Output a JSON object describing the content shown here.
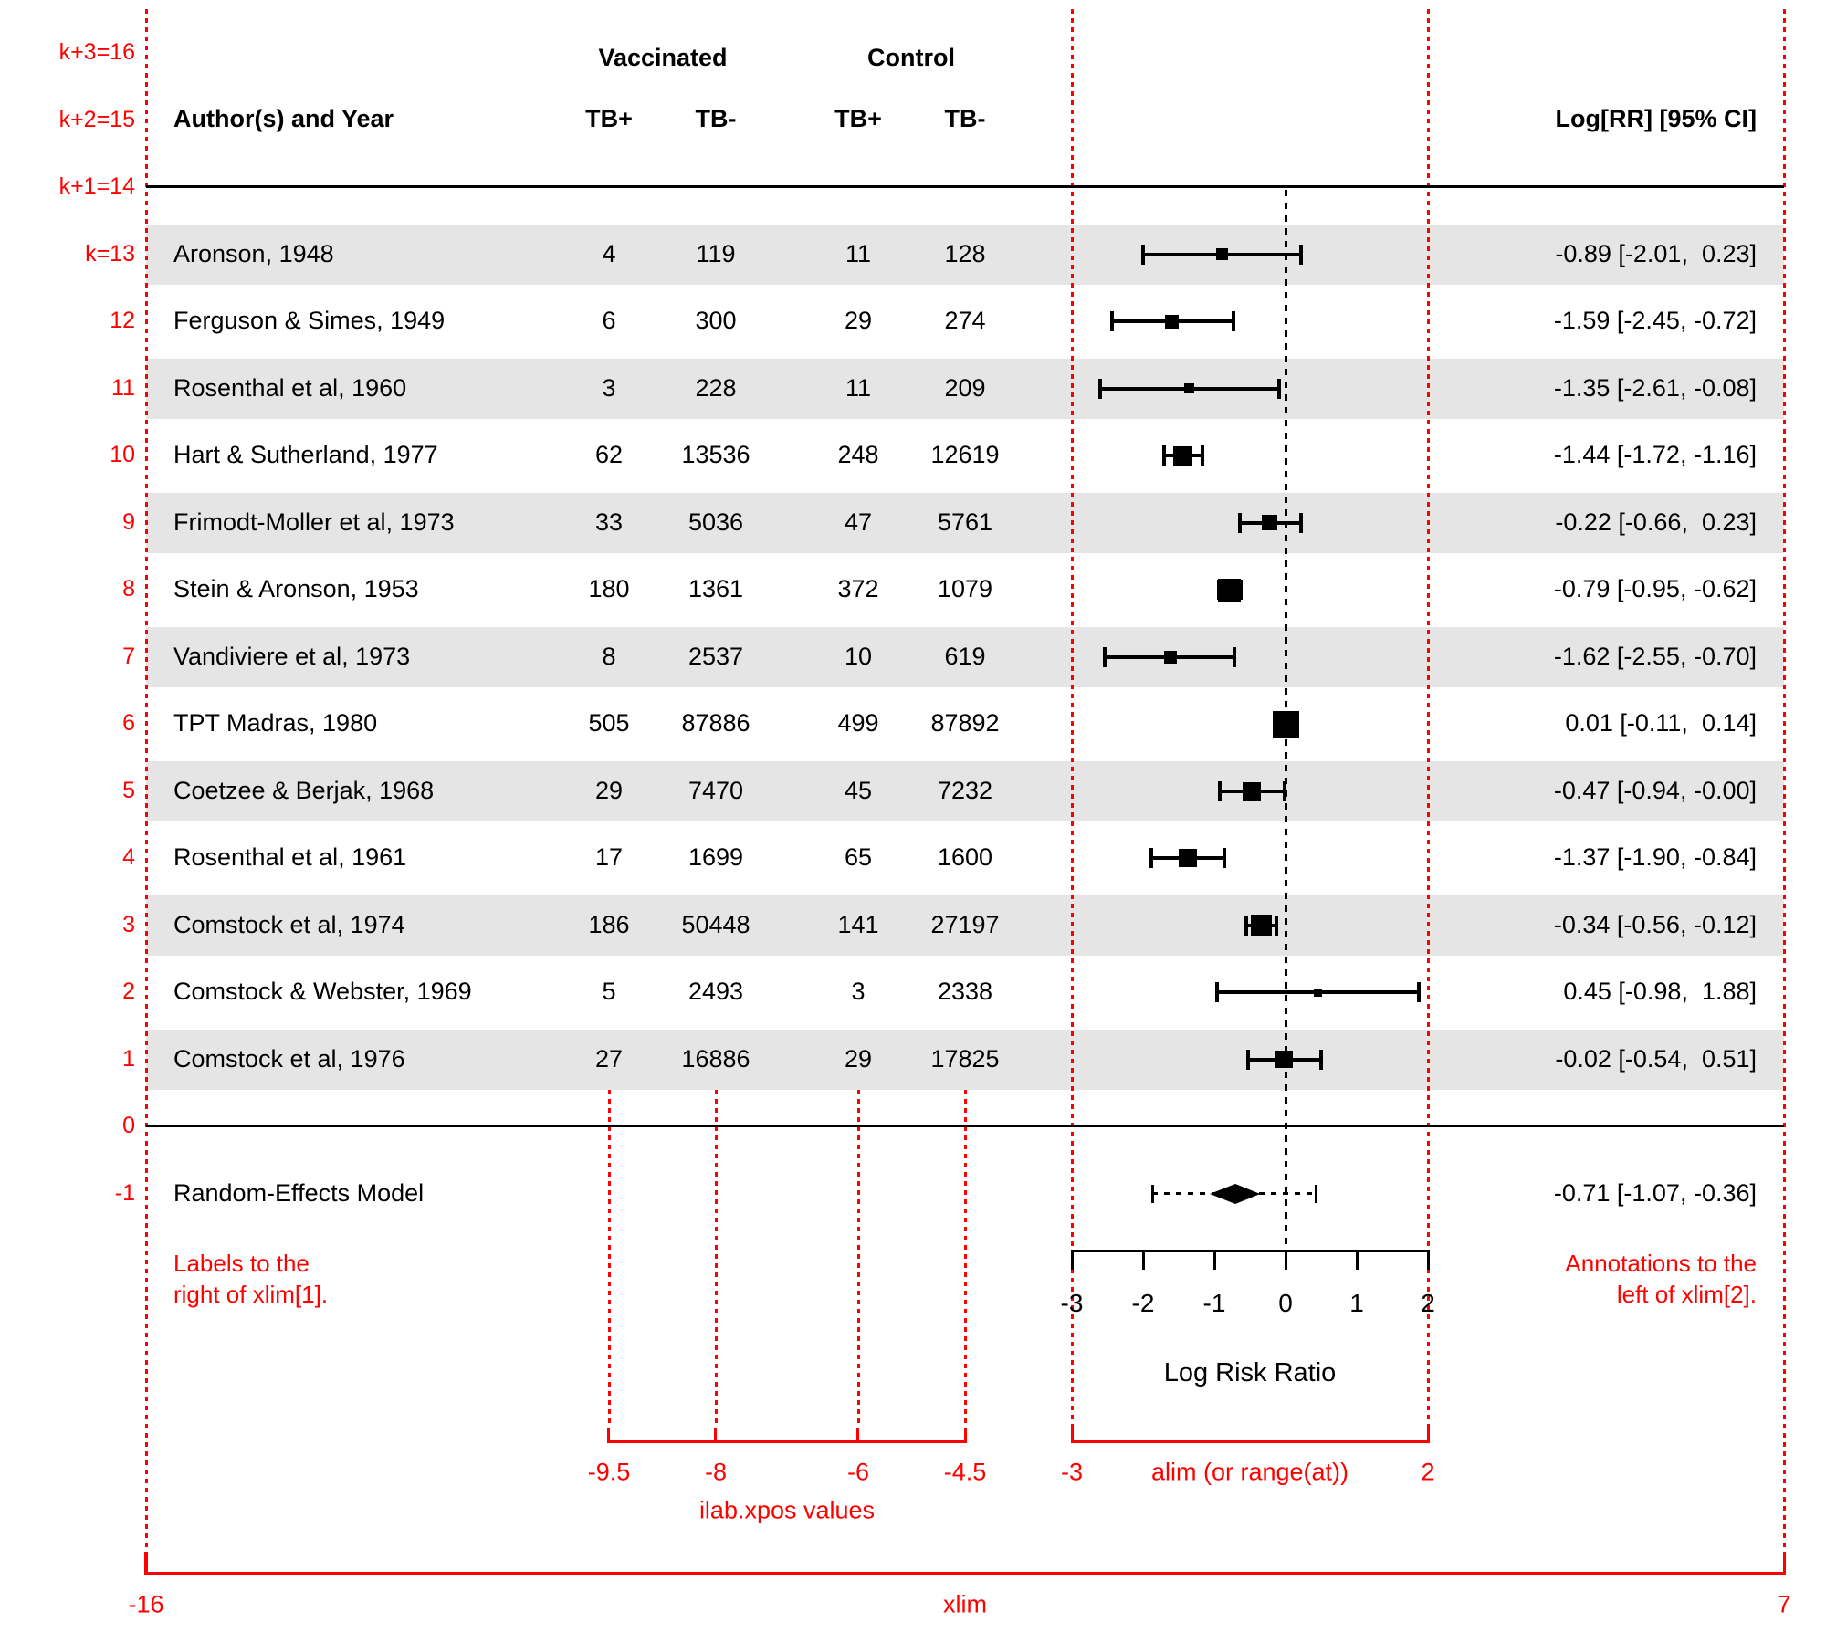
{
  "chart_data": {
    "type": "scatter",
    "subtype": "forest-plot-meta-analysis",
    "xlabel": "Log Risk Ratio",
    "axis_ticks": [
      -3,
      -2,
      -1,
      0,
      1,
      2
    ],
    "alim": [
      -3,
      2
    ],
    "xlim": [
      -16,
      7
    ],
    "ilab_xpos": [
      -9.5,
      -8,
      -6,
      -4.5
    ],
    "columns": {
      "author": "Author(s) and Year",
      "group1": "Vaccinated",
      "group2": "Control",
      "sub": [
        "TB+",
        "TB-",
        "TB+",
        "TB-"
      ],
      "annotation": "Log[RR] [95% CI]"
    },
    "row_labels": [
      {
        "row": 16,
        "label": "k+3=16"
      },
      {
        "row": 15,
        "label": "k+2=15"
      },
      {
        "row": 14,
        "label": "k+1=14"
      },
      {
        "row": 13,
        "label": "k=13"
      },
      {
        "row": 12,
        "label": "12"
      },
      {
        "row": 11,
        "label": "11"
      },
      {
        "row": 10,
        "label": "10"
      },
      {
        "row": 9,
        "label": "9"
      },
      {
        "row": 8,
        "label": "8"
      },
      {
        "row": 7,
        "label": "7"
      },
      {
        "row": 6,
        "label": "6"
      },
      {
        "row": 5,
        "label": "5"
      },
      {
        "row": 4,
        "label": "4"
      },
      {
        "row": 3,
        "label": "3"
      },
      {
        "row": 2,
        "label": "2"
      },
      {
        "row": 1,
        "label": "1"
      },
      {
        "row": 0,
        "label": "0"
      },
      {
        "row": -1,
        "label": "-1"
      }
    ],
    "studies": [
      {
        "row": 13,
        "author": "Aronson, 1948",
        "tb_pos_v": 4,
        "tb_neg_v": 119,
        "tb_pos_c": 11,
        "tb_neg_c": 128,
        "yi": -0.89,
        "ci_lb": -2.01,
        "ci_ub": 0.23,
        "annotation": "-0.89 [-2.01,  0.23]",
        "psize": 13,
        "shaded": true
      },
      {
        "row": 12,
        "author": "Ferguson & Simes, 1949",
        "tb_pos_v": 6,
        "tb_neg_v": 300,
        "tb_pos_c": 29,
        "tb_neg_c": 274,
        "yi": -1.59,
        "ci_lb": -2.45,
        "ci_ub": -0.72,
        "annotation": "-1.59 [-2.45, -0.72]",
        "psize": 15,
        "shaded": false
      },
      {
        "row": 11,
        "author": "Rosenthal et al, 1960",
        "tb_pos_v": 3,
        "tb_neg_v": 228,
        "tb_pos_c": 11,
        "tb_neg_c": 209,
        "yi": -1.35,
        "ci_lb": -2.61,
        "ci_ub": -0.08,
        "annotation": "-1.35 [-2.61, -0.08]",
        "psize": 11,
        "shaded": true
      },
      {
        "row": 10,
        "author": "Hart & Sutherland, 1977",
        "tb_pos_v": 62,
        "tb_neg_v": 13536,
        "tb_pos_c": 248,
        "tb_neg_c": 12619,
        "yi": -1.44,
        "ci_lb": -1.72,
        "ci_ub": -1.16,
        "annotation": "-1.44 [-1.72, -1.16]",
        "psize": 21,
        "shaded": false
      },
      {
        "row": 9,
        "author": "Frimodt-Moller et al, 1973",
        "tb_pos_v": 33,
        "tb_neg_v": 5036,
        "tb_pos_c": 47,
        "tb_neg_c": 5761,
        "yi": -0.22,
        "ci_lb": -0.66,
        "ci_ub": 0.23,
        "annotation": "-0.22 [-0.66,  0.23]",
        "psize": 17,
        "shaded": true
      },
      {
        "row": 8,
        "author": "Stein & Aronson, 1953",
        "tb_pos_v": 180,
        "tb_neg_v": 1361,
        "tb_pos_c": 372,
        "tb_neg_c": 1079,
        "yi": -0.79,
        "ci_lb": -0.95,
        "ci_ub": -0.62,
        "annotation": "-0.79 [-0.95, -0.62]",
        "psize": 25,
        "shaded": false
      },
      {
        "row": 7,
        "author": "Vandiviere et al, 1973",
        "tb_pos_v": 8,
        "tb_neg_v": 2537,
        "tb_pos_c": 10,
        "tb_neg_c": 619,
        "yi": -1.62,
        "ci_lb": -2.55,
        "ci_ub": -0.7,
        "annotation": "-1.62 [-2.55, -0.70]",
        "psize": 14,
        "shaded": true
      },
      {
        "row": 6,
        "author": "TPT Madras, 1980",
        "tb_pos_v": 505,
        "tb_neg_v": 87886,
        "tb_pos_c": 499,
        "tb_neg_c": 87892,
        "yi": 0.01,
        "ci_lb": -0.11,
        "ci_ub": 0.14,
        "annotation": "0.01 [-0.11,  0.14]",
        "psize": 29,
        "shaded": false
      },
      {
        "row": 5,
        "author": "Coetzee & Berjak, 1968",
        "tb_pos_v": 29,
        "tb_neg_v": 7470,
        "tb_pos_c": 45,
        "tb_neg_c": 7232,
        "yi": -0.47,
        "ci_lb": -0.94,
        "ci_ub": 0.0,
        "annotation": "-0.47 [-0.94, -0.00]",
        "psize": 20,
        "shaded": true
      },
      {
        "row": 4,
        "author": "Rosenthal et al, 1961",
        "tb_pos_v": 17,
        "tb_neg_v": 1699,
        "tb_pos_c": 65,
        "tb_neg_c": 1600,
        "yi": -1.37,
        "ci_lb": -1.9,
        "ci_ub": -0.84,
        "annotation": "-1.37 [-1.90, -0.84]",
        "psize": 20,
        "shaded": false
      },
      {
        "row": 3,
        "author": "Comstock et al, 1974",
        "tb_pos_v": 186,
        "tb_neg_v": 50448,
        "tb_pos_c": 141,
        "tb_neg_c": 27197,
        "yi": -0.34,
        "ci_lb": -0.56,
        "ci_ub": -0.12,
        "annotation": "-0.34 [-0.56, -0.12]",
        "psize": 23,
        "shaded": true
      },
      {
        "row": 2,
        "author": "Comstock & Webster, 1969",
        "tb_pos_v": 5,
        "tb_neg_v": 2493,
        "tb_pos_c": 3,
        "tb_neg_c": 2338,
        "yi": 0.45,
        "ci_lb": -0.98,
        "ci_ub": 1.88,
        "annotation": "0.45 [-0.98,  1.88]",
        "psize": 9,
        "shaded": false
      },
      {
        "row": 1,
        "author": "Comstock et al, 1976",
        "tb_pos_v": 27,
        "tb_neg_v": 16886,
        "tb_pos_c": 29,
        "tb_neg_c": 17825,
        "yi": -0.02,
        "ci_lb": -0.54,
        "ci_ub": 0.51,
        "annotation": "-0.02 [-0.54,  0.51]",
        "psize": 19,
        "shaded": true
      }
    ],
    "summary": {
      "row": -1,
      "label": "Random-Effects Model",
      "yi": -0.71,
      "ci_lb": -1.07,
      "ci_ub": -0.36,
      "pi_lb": -1.87,
      "pi_ub": 0.44,
      "annotation": "-0.71 [-1.07, -0.36]"
    }
  },
  "annotations": {
    "left_note_line1": "Labels to the",
    "left_note_line2": "right of xlim[1].",
    "right_note_line1": "Annotations to the",
    "right_note_line2": "left of xlim[2].",
    "ilab_ticks": [
      "-9.5",
      "-8",
      "-6",
      "-4.5"
    ],
    "ilab_caption": "ilab.xpos values",
    "alim_left": "-3",
    "alim_caption": "alim (or range(at))",
    "alim_right": "2",
    "xlim_left": "-16",
    "xlim_caption": "xlim",
    "xlim_right": "7"
  },
  "colors": {
    "accent_red": "#ff0000",
    "band_gray": "#e5e5e5",
    "ink": "#000000"
  }
}
